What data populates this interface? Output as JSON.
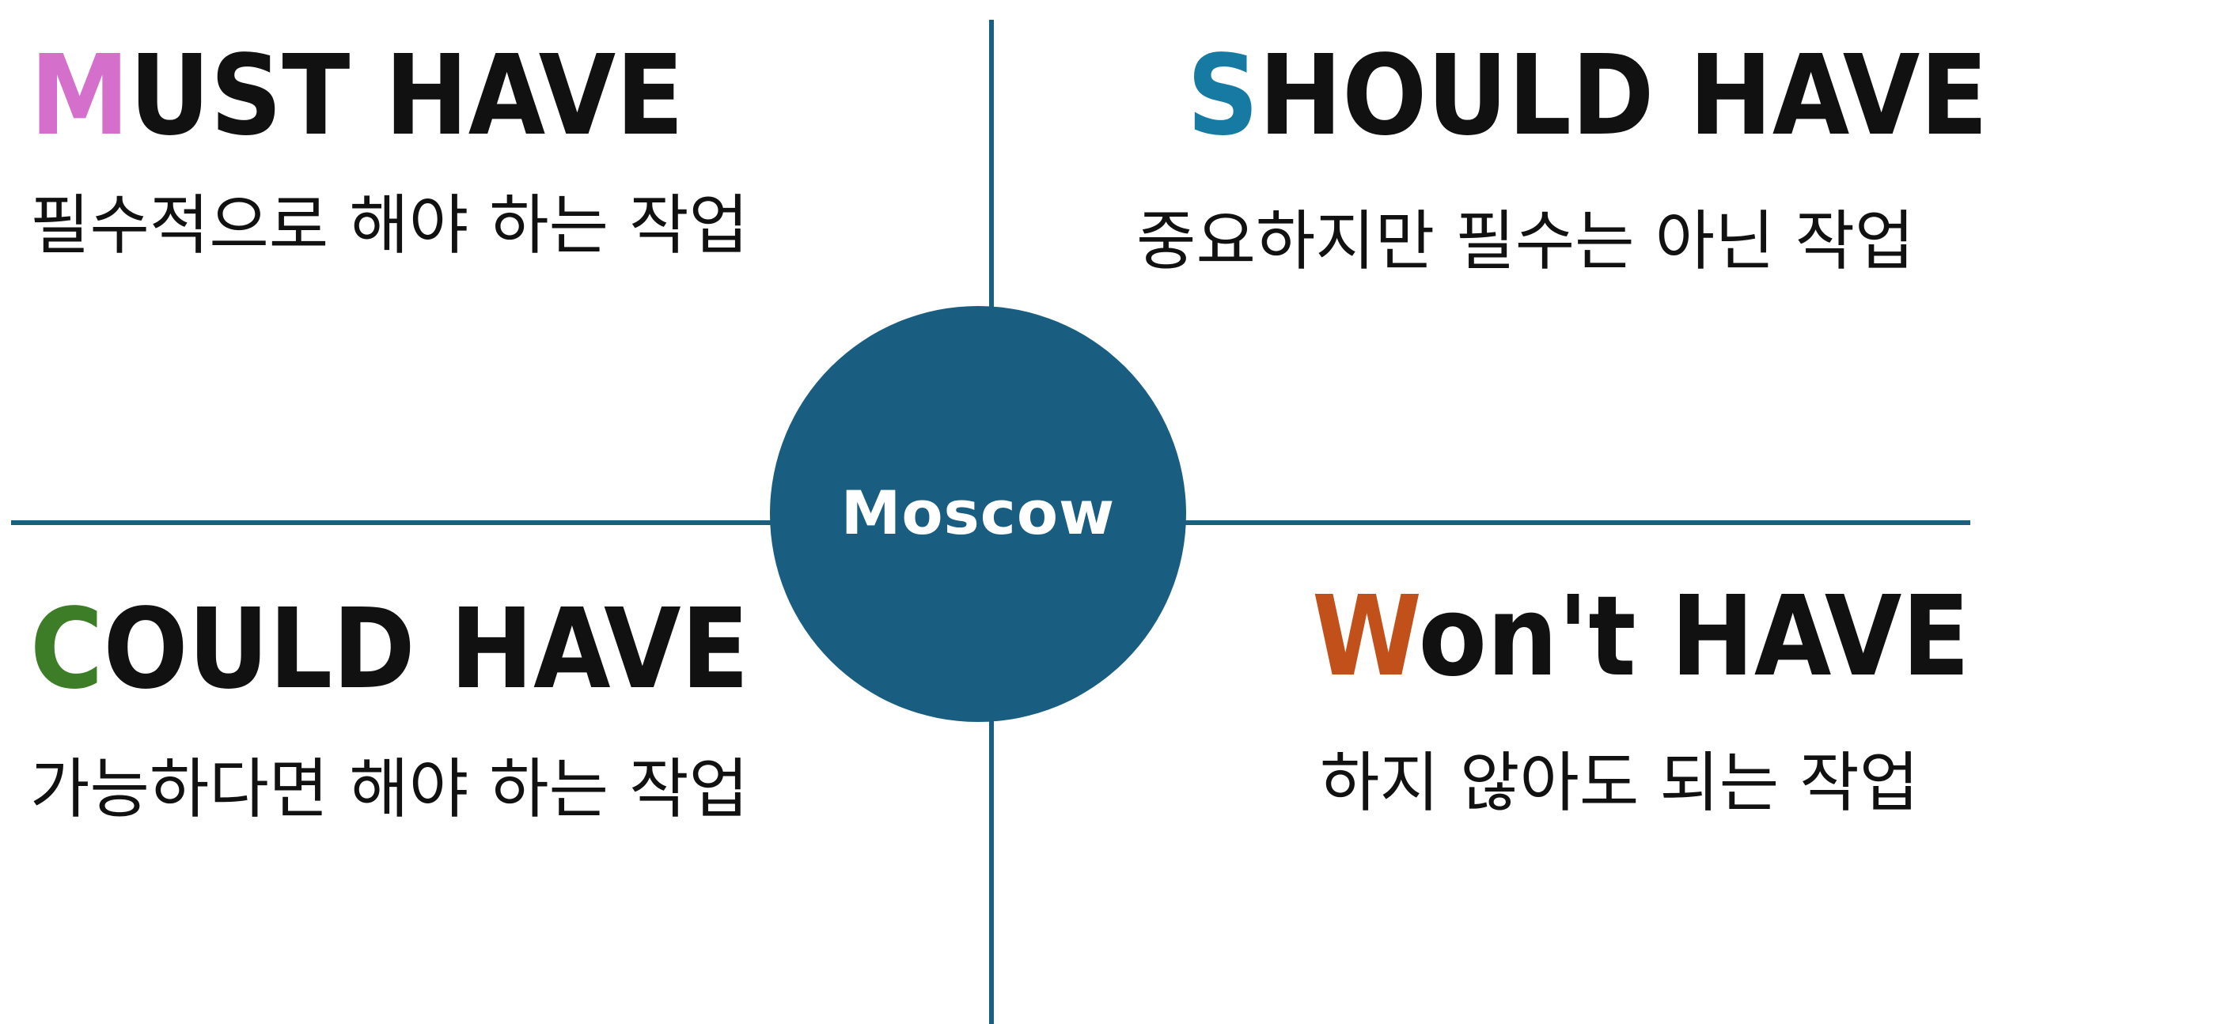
{
  "center": {
    "label": "Moscow",
    "color": "#195e80"
  },
  "axis_color": "#1a5e80",
  "quadrants": {
    "must": {
      "initial": "M",
      "rest": "UST HAVE",
      "initial_color": "#d46fcc",
      "description": "필수적으로 해야 하는 작업"
    },
    "should": {
      "initial": "S",
      "rest": "HOULD HAVE",
      "initial_color": "#177aa3",
      "description": "중요하지만 필수는 아닌 작업"
    },
    "could": {
      "initial": "C",
      "rest": "OULD HAVE",
      "initial_color": "#3e7d28",
      "description": "가능하다면 해야 하는 작업"
    },
    "wont": {
      "initial": "W",
      "rest": "on't HAVE",
      "initial_color": "#c2501b",
      "description": "하지 않아도 되는 작업"
    }
  }
}
